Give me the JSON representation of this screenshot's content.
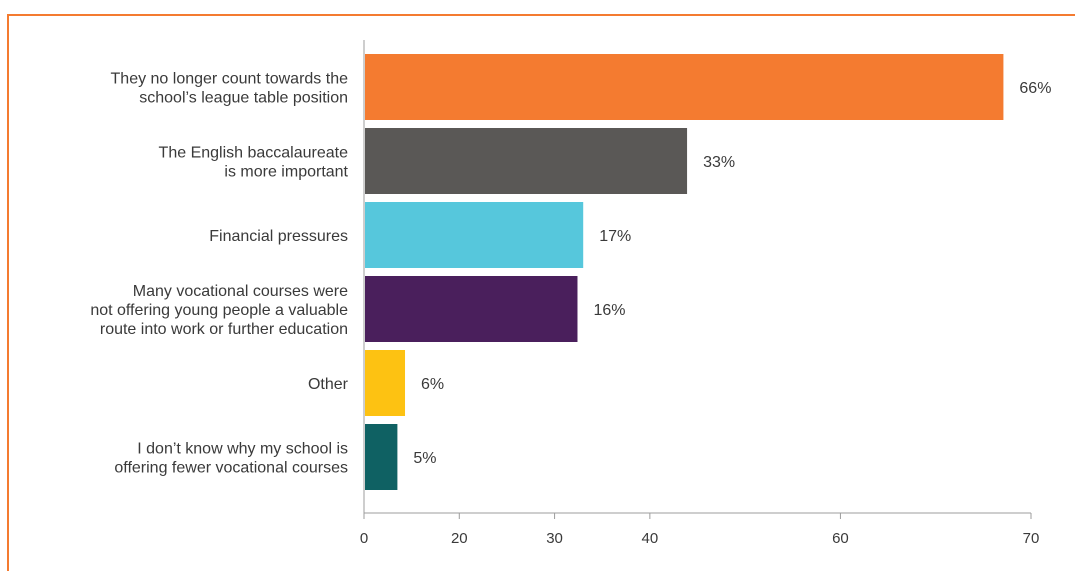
{
  "chart_data": {
    "type": "bar",
    "orientation": "horizontal",
    "categories": [
      [
        "They no longer count towards the",
        "school’s league table position"
      ],
      [
        "The English baccalaureate",
        "is more important"
      ],
      [
        "Financial pressures"
      ],
      [
        "Many vocational courses were",
        "not offering young people a valuable",
        "route into work or further education"
      ],
      [
        "Other"
      ],
      [
        "I don’t know why my school is",
        "offering fewer vocational courses"
      ]
    ],
    "values": [
      66,
      33,
      17,
      16,
      6,
      5
    ],
    "value_labels": [
      "66%",
      "33%",
      "17%",
      "16%",
      "6%",
      "5%"
    ],
    "bar_lengths": [
      67,
      33.8,
      22.9,
      22.3,
      4.2,
      3.4
    ],
    "colors": [
      "#f47b30",
      "#5a5856",
      "#56c7dc",
      "#4a1f5c",
      "#fdc212",
      "#0f6163"
    ],
    "x_ticks": [
      "0",
      "20",
      "30",
      "40",
      "60",
      "70"
    ],
    "xlim": [
      0,
      70
    ],
    "grid": false,
    "title": "",
    "xlabel": "",
    "ylabel": ""
  }
}
